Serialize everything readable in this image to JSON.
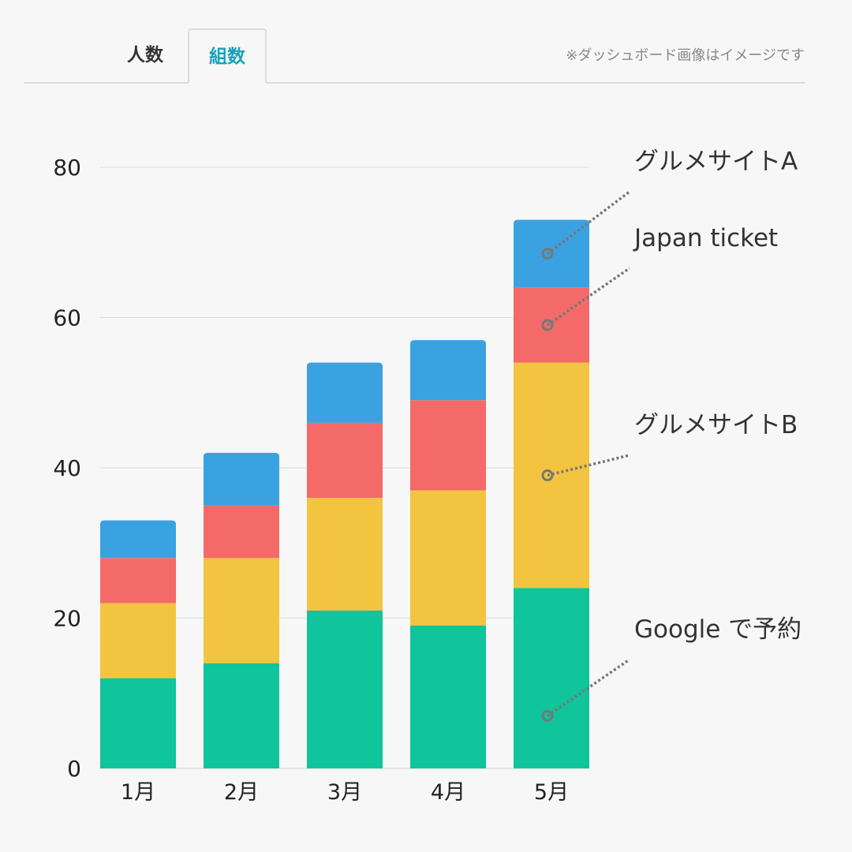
{
  "tabs": [
    {
      "label": "人数",
      "active": false
    },
    {
      "label": "組数",
      "active": true
    }
  ],
  "note": "※ダッシュボード画像はイメージです",
  "colors": {
    "accent": "#17a2b8",
    "google": "#10c49c",
    "gourmetB": "#f2c440",
    "japanTicket": "#f46a68",
    "gourmetA": "#3aa2e0"
  },
  "chart_data": {
    "type": "bar",
    "stacked": true,
    "categories": [
      "1月",
      "2月",
      "3月",
      "4月",
      "5月"
    ],
    "yticks": [
      "0",
      "20",
      "40",
      "60",
      "80"
    ],
    "ylim": [
      0,
      80
    ],
    "grid": true,
    "series": [
      {
        "name": "Google で予約",
        "color": "#10c49c",
        "values": [
          12,
          14,
          21,
          19,
          24
        ]
      },
      {
        "name": "グルメサイトB",
        "color": "#f2c440",
        "values": [
          10,
          14,
          15,
          18,
          30
        ]
      },
      {
        "name": "Japan ticket",
        "color": "#f46a68",
        "values": [
          6,
          7,
          10,
          12,
          10
        ]
      },
      {
        "name": "グルメサイトA",
        "color": "#3aa2e0",
        "values": [
          5,
          7,
          8,
          8,
          9
        ]
      }
    ]
  }
}
